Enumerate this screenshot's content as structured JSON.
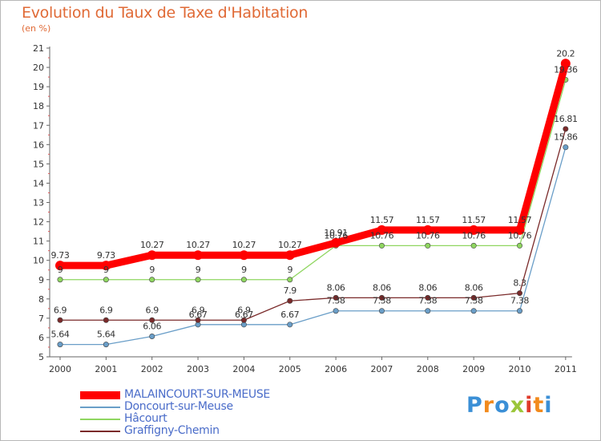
{
  "header": {
    "title": "Evolution du Taux de Taxe d'Habitation",
    "subtitle": "(en %)"
  },
  "logo": {
    "text": "Proxiti",
    "letter_colors": [
      "#3b8fd6",
      "#f28a1c",
      "#3b8fd6",
      "#9bc63a",
      "#e03a2a",
      "#f28a1c",
      "#3b8fd6"
    ]
  },
  "chart_data": {
    "type": "line",
    "x": [
      "2000",
      "2001",
      "2002",
      "2003",
      "2004",
      "2005",
      "2006",
      "2007",
      "2008",
      "2009",
      "2010",
      "2011"
    ],
    "y_ticks": [
      "5",
      "6",
      "7",
      "8",
      "9",
      "10",
      "11",
      "12",
      "13",
      "14",
      "15",
      "16",
      "17",
      "18",
      "19",
      "20",
      "21"
    ],
    "ylim": [
      5,
      21
    ],
    "grid": false,
    "legend_position": "bottom-left",
    "series": [
      {
        "name": "MALAINCOURT-SUR-MEUSE",
        "color": "#ff0000",
        "width": "thick",
        "values": [
          9.73,
          9.73,
          10.27,
          10.27,
          10.27,
          10.27,
          10.91,
          11.57,
          11.57,
          11.57,
          11.57,
          20.2
        ],
        "labels": [
          "9.73",
          "9.73",
          "10.27",
          "10.27",
          "10.27",
          "10.27",
          "10.91",
          "11.57",
          "11.57",
          "11.57",
          "11.57",
          "20.2"
        ]
      },
      {
        "name": "Doncourt-sur-Meuse",
        "color": "#6a9ec8",
        "width": "thin",
        "values": [
          5.64,
          5.64,
          6.06,
          6.67,
          6.67,
          6.67,
          7.38,
          7.38,
          7.38,
          7.38,
          7.38,
          15.86
        ],
        "labels": [
          "5.64",
          "5.64",
          "6.06",
          "6.67",
          "6.67",
          "6.67",
          "7.38",
          "7.38",
          "7.38",
          "7.38",
          "7.38",
          "15.86"
        ]
      },
      {
        "name": "Hâcourt",
        "color": "#8fd660",
        "width": "thin",
        "values": [
          9,
          9,
          9,
          9,
          9,
          9,
          10.76,
          10.76,
          10.76,
          10.76,
          10.76,
          19.36
        ],
        "labels": [
          "9",
          "9",
          "9",
          "9",
          "9",
          "9",
          "10.76",
          "10.76",
          "10.76",
          "10.76",
          "10.76",
          "19.36"
        ]
      },
      {
        "name": "Graffigny-Chemin",
        "color": "#7a2a2a",
        "width": "thin",
        "values": [
          6.9,
          6.9,
          6.9,
          6.9,
          6.9,
          7.9,
          8.06,
          8.06,
          8.06,
          8.06,
          8.3,
          16.81
        ],
        "labels": [
          "6.9",
          "6.9",
          "6.9",
          "6.9",
          "6.9",
          "7.9",
          "8.06",
          "8.06",
          "8.06",
          "8.06",
          "8.3",
          "16.81"
        ]
      }
    ]
  }
}
